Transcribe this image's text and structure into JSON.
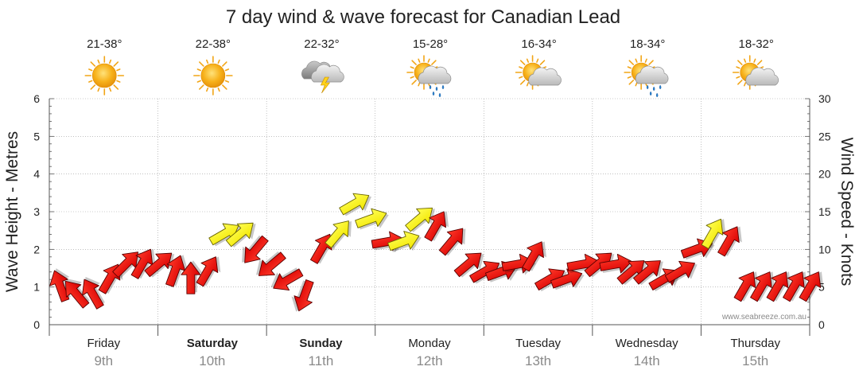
{
  "chart_data": {
    "type": "line",
    "title": "7 day wind & wave forecast for Canadian Lead",
    "ylabel_left": "Wave Height - Metres",
    "ylabel_right": "Wind Speed - Knots",
    "yleft_ticks": [
      "0",
      "1",
      "2",
      "3",
      "4",
      "5",
      "6"
    ],
    "yright_ticks": [
      "0",
      "5",
      "10",
      "15",
      "20",
      "25",
      "30"
    ],
    "ylim_left": [
      0,
      6
    ],
    "ylim_right": [
      0,
      30
    ],
    "watermark": "www.seabreeze.com.au",
    "days": [
      {
        "day": "Friday",
        "date": "9th",
        "temp": "21-38°",
        "icon": "sunny-icon",
        "bold": false
      },
      {
        "day": "Saturday",
        "date": "10th",
        "temp": "22-38°",
        "icon": "sunny-icon",
        "bold": true
      },
      {
        "day": "Sunday",
        "date": "11th",
        "temp": "22-32°",
        "icon": "storm-icon",
        "bold": true
      },
      {
        "day": "Monday",
        "date": "12th",
        "temp": "15-28°",
        "icon": "sun-cloud-rain-icon",
        "bold": false
      },
      {
        "day": "Tuesday",
        "date": "13th",
        "temp": "16-34°",
        "icon": "partly-cloudy-icon",
        "bold": false
      },
      {
        "day": "Wednesday",
        "date": "14th",
        "temp": "18-34°",
        "icon": "sun-cloud-rain-icon",
        "bold": false
      },
      {
        "day": "Thursday",
        "date": "15th",
        "temp": "18-32°",
        "icon": "partly-cloudy-icon",
        "bold": false
      }
    ],
    "series": [
      {
        "name": "Wind Speed (knots)",
        "x_days": [
          0.0,
          0.15,
          0.3,
          0.45,
          0.6,
          0.75,
          0.9,
          1.05,
          1.2,
          1.35,
          1.5,
          1.65,
          1.8,
          1.95,
          2.1,
          2.25,
          2.4,
          2.55,
          2.7,
          2.85,
          3.0,
          3.15,
          3.3,
          3.45,
          3.6,
          3.75,
          3.9,
          4.05,
          4.2,
          4.35,
          4.5,
          4.65,
          4.8,
          4.95,
          5.1,
          5.25,
          5.4,
          5.55,
          5.7,
          5.85,
          6.0,
          6.15,
          6.3,
          6.45,
          6.6,
          6.75,
          6.9
        ],
        "values": [
          5,
          4,
          4,
          6,
          8,
          8,
          8,
          7,
          6,
          7,
          12,
          12,
          10,
          8,
          6,
          4,
          10,
          12,
          16,
          14,
          11,
          11,
          14,
          13,
          11,
          8,
          7,
          7,
          8,
          9,
          6,
          6,
          8,
          8,
          8,
          7,
          7,
          6,
          7,
          10,
          12,
          11,
          5,
          5,
          5,
          5,
          5
        ],
        "colors": [
          "red",
          "red",
          "red",
          "red",
          "red",
          "red",
          "red",
          "red",
          "red",
          "red",
          "yellow",
          "yellow",
          "red",
          "red",
          "red",
          "red",
          "red",
          "yellow",
          "yellow",
          "yellow",
          "red",
          "yellow",
          "yellow",
          "red",
          "red",
          "red",
          "red",
          "red",
          "red",
          "red",
          "red",
          "red",
          "red",
          "red",
          "red",
          "red",
          "red",
          "red",
          "red",
          "red",
          "yellow",
          "red",
          "red",
          "red",
          "red",
          "red",
          "red"
        ],
        "directions_deg": [
          250,
          230,
          240,
          300,
          315,
          300,
          320,
          290,
          270,
          300,
          330,
          320,
          130,
          140,
          150,
          110,
          300,
          310,
          330,
          340,
          350,
          340,
          320,
          300,
          310,
          320,
          330,
          340,
          350,
          300,
          330,
          340,
          350,
          320,
          350,
          320,
          320,
          330,
          330,
          340,
          300,
          300,
          300,
          300,
          300,
          300,
          300
        ]
      }
    ]
  }
}
